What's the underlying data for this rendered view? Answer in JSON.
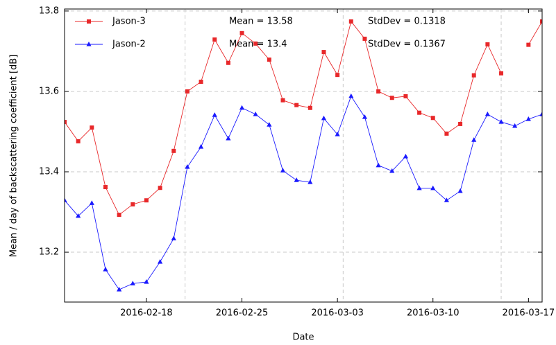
{
  "chart_data": {
    "type": "line",
    "xlabel": "Date",
    "ylabel": "Mean / day of backscattering coefficient [dB]",
    "x": [
      "2016-02-12",
      "2016-02-13",
      "2016-02-14",
      "2016-02-15",
      "2016-02-16",
      "2016-02-17",
      "2016-02-18",
      "2016-02-19",
      "2016-02-20",
      "2016-02-21",
      "2016-02-22",
      "2016-02-23",
      "2016-02-24",
      "2016-02-25",
      "2016-02-26",
      "2016-02-27",
      "2016-02-28",
      "2016-02-29",
      "2016-03-01",
      "2016-03-02",
      "2016-03-03",
      "2016-03-04",
      "2016-03-05",
      "2016-03-06",
      "2016-03-07",
      "2016-03-08",
      "2016-03-09",
      "2016-03-10",
      "2016-03-11",
      "2016-03-12",
      "2016-03-13",
      "2016-03-14",
      "2016-03-15",
      "2016-03-16",
      "2016-03-17",
      "2016-03-18"
    ],
    "series": [
      {
        "name": "Jason-3",
        "color": "#e8282a",
        "marker": "square",
        "values": [
          13.524,
          13.476,
          13.51,
          13.362,
          13.293,
          13.319,
          13.329,
          13.36,
          13.452,
          13.6,
          13.624,
          13.729,
          13.671,
          13.745,
          13.719,
          13.679,
          13.578,
          13.566,
          13.559,
          13.698,
          13.641,
          13.774,
          13.731,
          13.6,
          13.584,
          13.588,
          13.547,
          13.534,
          13.495,
          13.519,
          13.64,
          13.717,
          13.645,
          null,
          13.716,
          13.774
        ]
      },
      {
        "name": "Jason-2",
        "color": "#1a1aff",
        "marker": "triangle",
        "values": [
          13.329,
          13.29,
          13.322,
          13.157,
          13.107,
          13.122,
          13.126,
          13.176,
          13.234,
          13.412,
          13.462,
          13.541,
          13.483,
          13.559,
          13.543,
          13.517,
          13.403,
          13.379,
          13.374,
          13.533,
          13.493,
          13.588,
          13.536,
          13.416,
          13.402,
          13.438,
          13.359,
          13.359,
          13.329,
          13.352,
          13.479,
          13.543,
          13.524,
          13.514,
          13.531,
          13.543
        ]
      }
    ],
    "annotations": [
      [
        "Mean = 13.58",
        "StdDev = 0.1318"
      ],
      [
        "Mean = 13.4",
        "StdDev = 0.1367"
      ]
    ],
    "xlim": [
      "2016-02-12",
      "2016-03-18"
    ],
    "xticks": [
      "2016-02-18",
      "2016-02-25",
      "2016-03-03",
      "2016-03-10",
      "2016-03-17"
    ],
    "xgrid": [
      "2016-02-20T20:00Z",
      "2016-03-03T10:00Z",
      "2016-03-15T00:00Z"
    ],
    "ylim": [
      13.076,
      13.805
    ],
    "yticks": [
      13.2,
      13.4,
      13.6,
      13.8
    ],
    "grid": true,
    "legend": "upper left"
  }
}
